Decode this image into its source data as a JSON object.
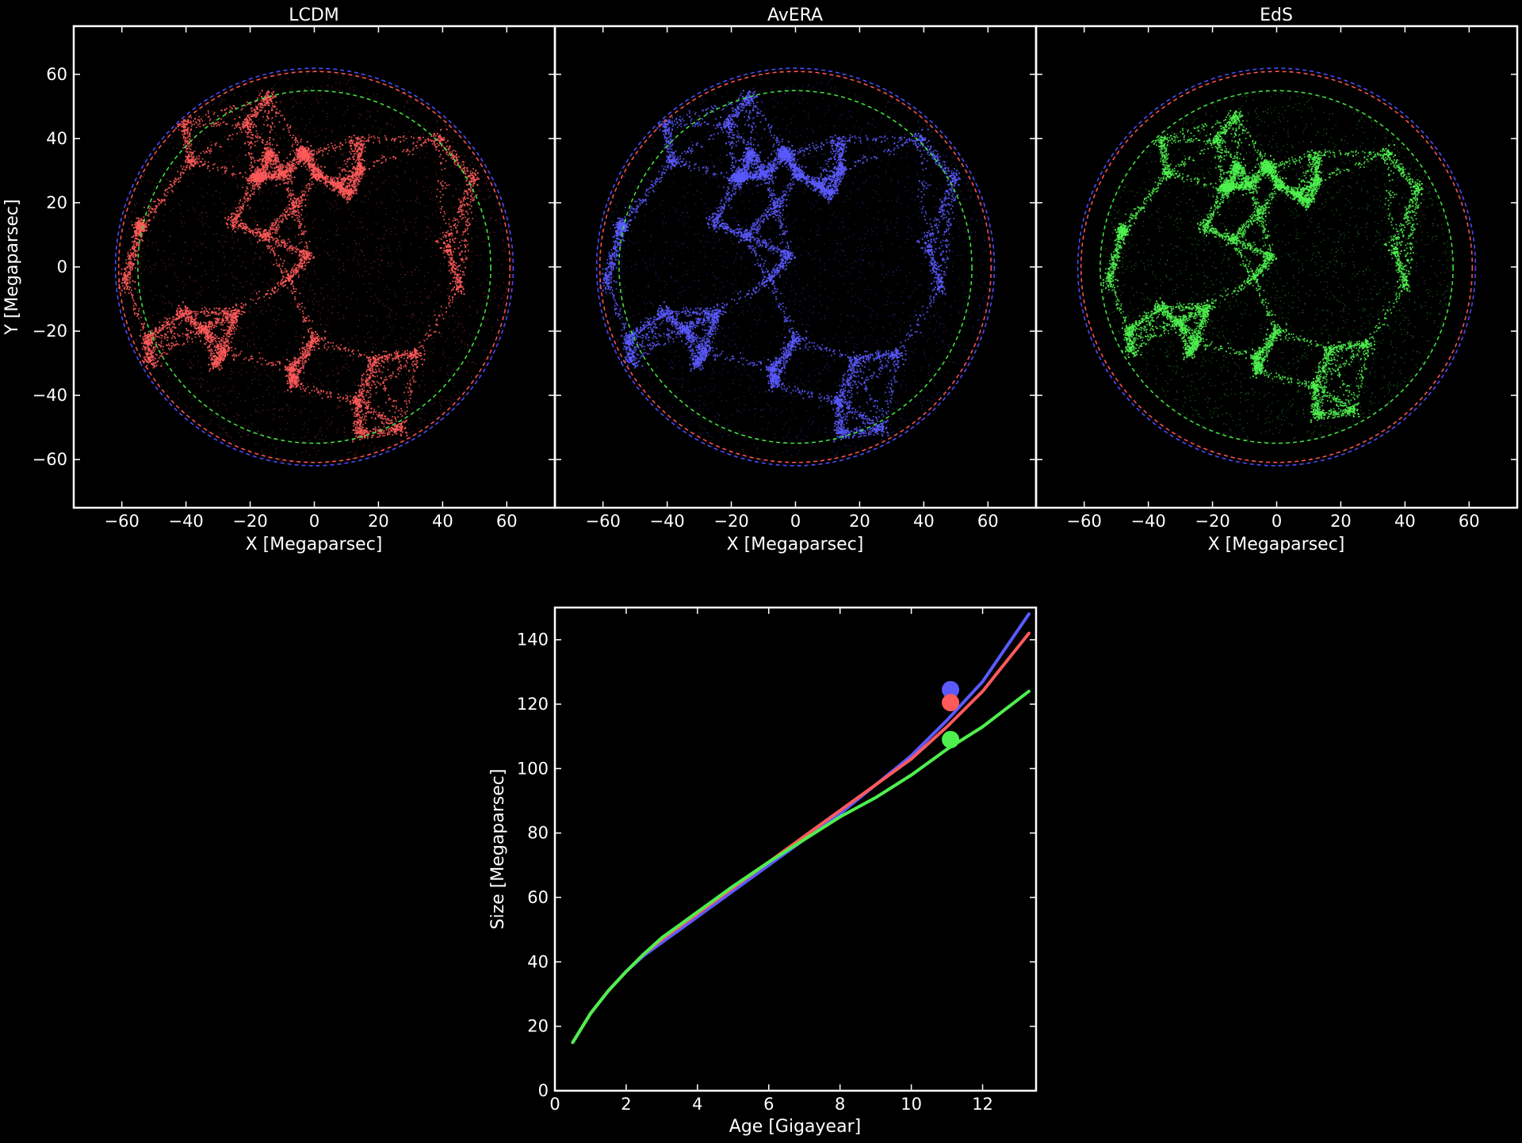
{
  "chart_data": [
    {
      "type": "scatter",
      "title": "LCDM",
      "xlabel": "X [Megaparsec]",
      "ylabel": "Y [Megaparsec]",
      "xlim": [
        -75,
        75
      ],
      "ylim": [
        -75,
        75
      ],
      "xticks": [
        -60,
        -40,
        -20,
        0,
        20,
        40,
        60
      ],
      "yticks": [
        -60,
        -40,
        -20,
        0,
        20,
        40,
        60
      ],
      "xtick_labels": [
        "−60",
        "−40",
        "−20",
        "0",
        "20",
        "40",
        "60"
      ],
      "ytick_labels": [
        "−60",
        "−40",
        "−20",
        "0",
        "20",
        "40",
        "60"
      ],
      "point_color": "#ff5a5a",
      "distribution_radius": 62,
      "reference_circles": [
        {
          "radius": 62,
          "color": "#4a4aff",
          "style": "dashed"
        },
        {
          "radius": 61,
          "color": "#ff5050",
          "style": "dashed"
        },
        {
          "radius": 55,
          "color": "#40e040",
          "style": "dashed"
        }
      ],
      "grid": false
    },
    {
      "type": "scatter",
      "title": "AvERA",
      "xlabel": "X [Megaparsec]",
      "ylabel": "",
      "xlim": [
        -75,
        75
      ],
      "ylim": [
        -75,
        75
      ],
      "xticks": [
        -60,
        -40,
        -20,
        0,
        20,
        40,
        60
      ],
      "xtick_labels": [
        "−60",
        "−40",
        "−20",
        "0",
        "20",
        "40",
        "60"
      ],
      "point_color": "#5a5aff",
      "distribution_radius": 62,
      "reference_circles": [
        {
          "radius": 62,
          "color": "#4a4aff",
          "style": "dashed"
        },
        {
          "radius": 61,
          "color": "#ff5050",
          "style": "dashed"
        },
        {
          "radius": 55,
          "color": "#40e040",
          "style": "dashed"
        }
      ],
      "grid": false
    },
    {
      "type": "scatter",
      "title": "EdS",
      "xlabel": "X [Megaparsec]",
      "ylabel": "",
      "xlim": [
        -75,
        75
      ],
      "ylim": [
        -75,
        75
      ],
      "xticks": [
        -60,
        -40,
        -20,
        0,
        20,
        40,
        60
      ],
      "xtick_labels": [
        "−60",
        "−40",
        "−20",
        "0",
        "20",
        "40",
        "60"
      ],
      "point_color": "#4ef04e",
      "distribution_radius": 55,
      "reference_circles": [
        {
          "radius": 62,
          "color": "#4a4aff",
          "style": "dashed"
        },
        {
          "radius": 61,
          "color": "#ff5050",
          "style": "dashed"
        },
        {
          "radius": 55,
          "color": "#40e040",
          "style": "dashed"
        }
      ],
      "grid": false
    },
    {
      "type": "line",
      "title": "",
      "xlabel": "Age [Gigayear]",
      "ylabel": "Size [Megaparsec]",
      "xlim": [
        0,
        13.5
      ],
      "ylim": [
        0,
        150
      ],
      "xticks": [
        0,
        2,
        4,
        6,
        8,
        10,
        12
      ],
      "yticks": [
        0,
        20,
        40,
        60,
        80,
        100,
        120,
        140
      ],
      "x": [
        0.5,
        1,
        1.5,
        2,
        2.5,
        3,
        3.5,
        4,
        5,
        6,
        7,
        8,
        9,
        10,
        11,
        12,
        13.3
      ],
      "series": [
        {
          "color": "#5a5aff",
          "values": [
            15,
            24,
            31,
            37,
            42,
            46,
            50,
            54,
            62,
            70,
            78,
            86,
            95,
            104,
            115,
            127,
            148
          ],
          "marker": {
            "x": 11.1,
            "y": 124.5
          }
        },
        {
          "color": "#ff5a5a",
          "values": [
            15,
            24,
            31,
            37,
            42.5,
            47,
            51,
            55,
            63,
            71,
            79,
            87,
            95,
            103,
            113,
            124,
            142
          ],
          "marker": {
            "x": 11.1,
            "y": 120.5
          }
        },
        {
          "color": "#4ef04e",
          "values": [
            15,
            24,
            31,
            37,
            42.5,
            47.5,
            51.5,
            55.5,
            63.5,
            71,
            78,
            85,
            91,
            98,
            106,
            113,
            124
          ],
          "marker": {
            "x": 11.1,
            "y": 109
          }
        }
      ],
      "grid": false
    }
  ]
}
